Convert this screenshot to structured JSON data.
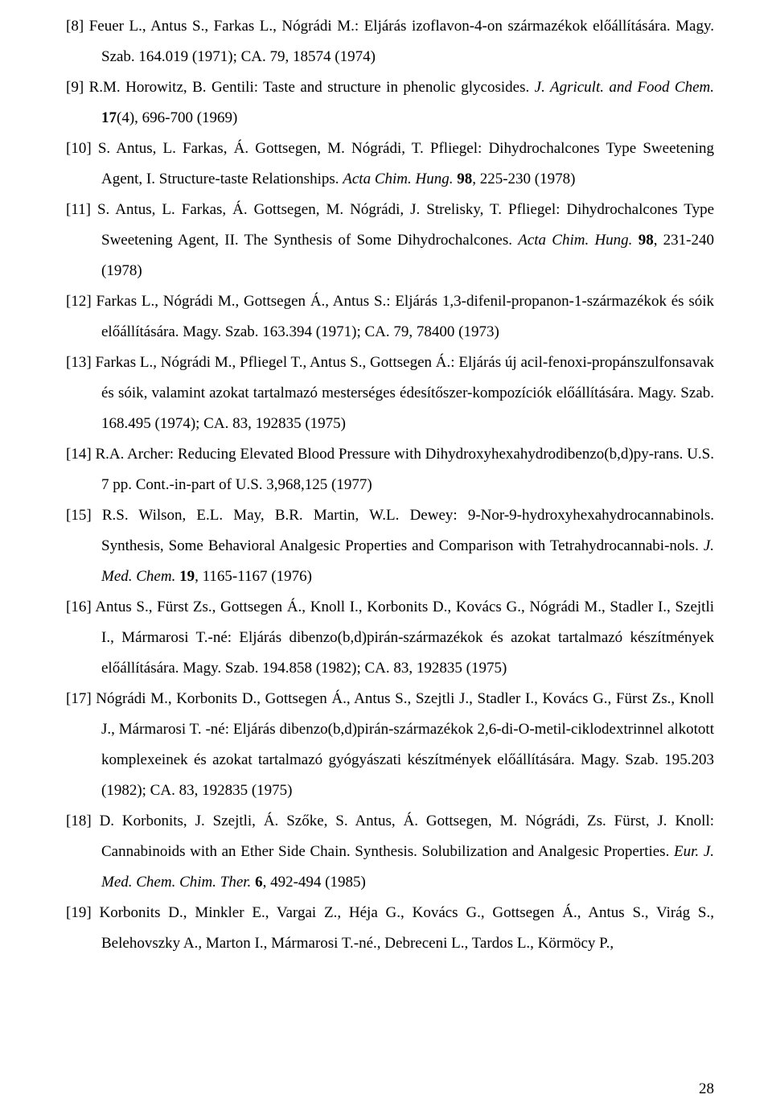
{
  "page": {
    "number": "28"
  },
  "typography": {
    "font_family": "Times New Roman",
    "font_size_pt": 14,
    "line_height": 2.0,
    "text_color": "#000000",
    "background_color": "#ffffff",
    "alignment": "justify"
  },
  "references": [
    {
      "num": "[8]",
      "segments": [
        {
          "t": "Feuer L., Antus S., Farkas L., Nógrádi M.: Eljárás izoflavon-4-on származékok előállítására. Magy. Szab. 164.019 (1971); CA. 79, 18574 (1974)"
        }
      ]
    },
    {
      "num": "[9]",
      "segments": [
        {
          "t": "R.M. Horowitz, B. Gentili: Taste and structure in phenolic glycosides. "
        },
        {
          "t": "J. Agricult. and Food Chem.",
          "i": true
        },
        {
          "t": " "
        },
        {
          "t": "17",
          "b": true
        },
        {
          "t": "(4), 696-700 (1969)"
        }
      ]
    },
    {
      "num": "[10]",
      "segments": [
        {
          "t": "S. Antus, L. Farkas, Á. Gottsegen, M. Nógrádi, T. Pfliegel: Dihydrochalcones Type Sweetening Agent, I. Structure-taste Relationships. "
        },
        {
          "t": "Acta Chim. Hung.",
          "i": true
        },
        {
          "t": " "
        },
        {
          "t": "98",
          "b": true
        },
        {
          "t": ", 225-230 (1978)"
        }
      ]
    },
    {
      "num": "[11]",
      "segments": [
        {
          "t": "S. Antus, L. Farkas, Á. Gottsegen, M. Nógrádi, J. Strelisky, T. Pfliegel: Dihydrochalcones Type Sweetening Agent, II. The Synthesis of Some Dihydrochalcones. "
        },
        {
          "t": "Acta Chim. Hung.",
          "i": true
        },
        {
          "t": " "
        },
        {
          "t": "98",
          "b": true
        },
        {
          "t": ", 231-240 (1978)"
        }
      ]
    },
    {
      "num": "[12]",
      "segments": [
        {
          "t": "Farkas L., Nógrádi M., Gottsegen Á., Antus S.: Eljárás 1,3-difenil-propanon-1-származékok és sóik előállítására. Magy. Szab. 163.394 (1971); CA. 79, 78400 (1973)"
        }
      ]
    },
    {
      "num": "[13]",
      "segments": [
        {
          "t": "Farkas L., Nógrádi M., Pfliegel T., Antus S., Gottsegen Á.: Eljárás új acil-fenoxi-propánszulfonsavak és sóik, valamint azokat tartalmazó mesterséges édesítőszer-kompozíciók előállítására. Magy. Szab. 168.495 (1974); CA. 83, 192835 (1975)"
        }
      ]
    },
    {
      "num": "[14]",
      "segments": [
        {
          "t": "R.A. Archer: Reducing Elevated Blood Pressure with Dihydroxyhexahydrodibenzo(b,d)py-rans. U.S. 7 pp. Cont.-in-part of U.S. 3,968,125 (1977)"
        }
      ]
    },
    {
      "num": "[15]",
      "segments": [
        {
          "t": "R.S. Wilson, E.L. May, B.R. Martin, W.L. Dewey: 9-Nor-9-hydroxyhexahydrocannabinols. Synthesis, Some Behavioral Analgesic Properties and Comparison with Tetrahydrocannabi-nols. "
        },
        {
          "t": "J. Med. Chem.",
          "i": true
        },
        {
          "t": " "
        },
        {
          "t": "19",
          "b": true
        },
        {
          "t": ", 1165-1167 (1976)"
        }
      ]
    },
    {
      "num": "[16]",
      "segments": [
        {
          "t": "Antus S., Fürst Zs., Gottsegen Á., Knoll I., Korbonits D., Kovács G., Nógrádi M., Stadler I., Szejtli I., Mármarosi T.-né: Eljárás dibenzo(b,d)pirán-származékok és azokat tartalmazó készítmények előállítására. Magy. Szab. 194.858 (1982); CA. 83, 192835 (1975)"
        }
      ]
    },
    {
      "num": "[17]",
      "segments": [
        {
          "t": "Nógrádi M., Korbonits D., Gottsegen Á., Antus S., Szejtli J., Stadler I., Kovács G., Fürst Zs., Knoll J., Mármarosi T. -né: Eljárás dibenzo(b,d)pirán-származékok 2,6-di-O-metil-ciklodextrinnel alkotott komplexeinek és azokat tartalmazó gyógyászati készítmények előállítására. Magy. Szab. 195.203 (1982); CA. 83, 192835 (1975)"
        }
      ]
    },
    {
      "num": "[18]",
      "segments": [
        {
          "t": "D. Korbonits, J. Szejtli, Á. Szőke, S. Antus, Á. Gottsegen, M. Nógrádi, Zs. Fürst, J. Knoll: Cannabinoids with an Ether Side Chain. Synthesis. Solubilization and Analgesic Properties. "
        },
        {
          "t": "Eur. J. Med. Chem. Chim. Ther.",
          "i": true
        },
        {
          "t": " "
        },
        {
          "t": "6",
          "b": true
        },
        {
          "t": ", 492-494 (1985)"
        }
      ]
    },
    {
      "num": "[19]",
      "segments": [
        {
          "t": "Korbonits D., Minkler E., Vargai Z., Héja G., Kovács G., Gottsegen Á., Antus S., Virág S., Belehovszky A., Marton I., Mármarosi T.-né., Debreceni L., Tardos L., Körmöcy P.,"
        }
      ]
    }
  ]
}
